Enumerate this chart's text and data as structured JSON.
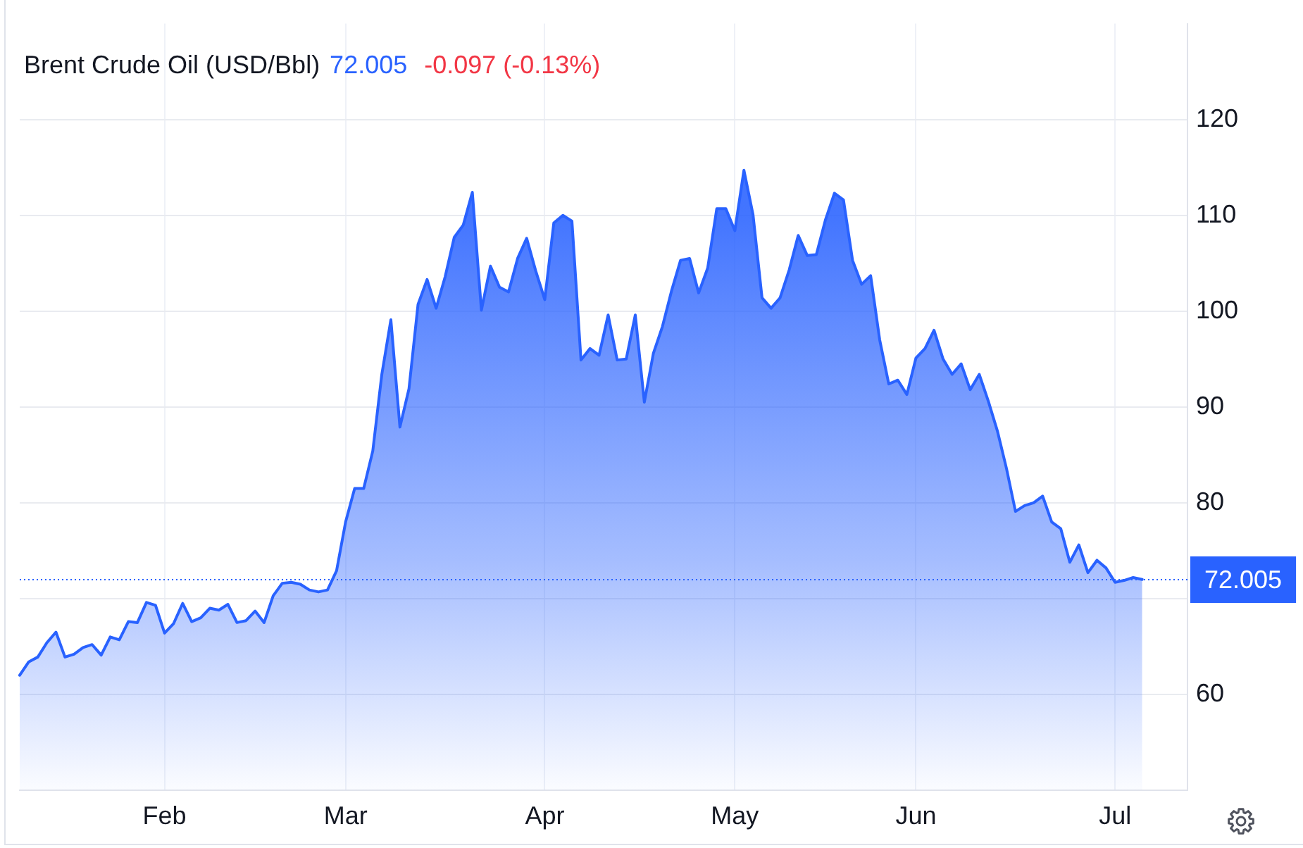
{
  "chart_data": {
    "type": "area",
    "title": "Brent Crude Oil (USD/Bbl)",
    "annotations": [
      "72.005",
      "-0.097 (-0.13%)"
    ],
    "categories": [
      null,
      null,
      null,
      null,
      null,
      null,
      null,
      null,
      null,
      null,
      null,
      null,
      null,
      null,
      null,
      null,
      "Feb",
      null,
      null,
      null,
      null,
      null,
      null,
      null,
      null,
      null,
      null,
      null,
      null,
      null,
      null,
      null,
      null,
      null,
      null,
      null,
      "Mar",
      null,
      null,
      null,
      null,
      null,
      null,
      null,
      null,
      null,
      null,
      null,
      null,
      null,
      null,
      null,
      null,
      null,
      null,
      null,
      null,
      null,
      "Apr",
      null,
      null,
      null,
      null,
      null,
      null,
      null,
      null,
      null,
      null,
      null,
      null,
      null,
      null,
      null,
      null,
      null,
      null,
      null,
      null,
      "May",
      null,
      null,
      null,
      null,
      null,
      null,
      null,
      null,
      null,
      null,
      null,
      null,
      null,
      null,
      null,
      null,
      null,
      null,
      null,
      "Jun",
      null,
      null,
      null,
      null,
      null,
      null,
      null,
      null,
      null,
      null,
      null,
      null,
      null,
      null,
      null,
      null,
      null,
      null,
      null,
      null,
      null,
      "Jul",
      null,
      null,
      null,
      null,
      null,
      null,
      null,
      null
    ],
    "values": [
      62.0,
      63.4,
      63.9,
      65.4,
      66.5,
      63.9,
      64.2,
      64.9,
      65.2,
      64.1,
      66.0,
      65.7,
      67.6,
      67.5,
      69.6,
      69.3,
      66.4,
      67.4,
      69.5,
      67.6,
      68.0,
      69.0,
      68.8,
      69.4,
      67.5,
      67.7,
      68.7,
      67.5,
      70.3,
      71.6,
      71.7,
      71.5,
      70.9,
      70.7,
      70.9,
      72.9,
      78.0,
      81.5,
      81.5,
      85.4,
      93.4,
      99.1,
      87.9,
      91.9,
      100.7,
      103.3,
      100.3,
      103.6,
      107.7,
      109.0,
      112.4,
      100.1,
      104.7,
      102.5,
      102.0,
      105.5,
      107.6,
      104.2,
      101.2,
      109.2,
      110.0,
      109.4,
      94.9,
      96.1,
      95.4,
      99.6,
      94.9,
      95.0,
      99.6,
      90.5,
      95.6,
      98.4,
      102.1,
      105.3,
      105.5,
      101.9,
      104.5,
      110.7,
      110.7,
      108.4,
      114.7,
      110.1,
      101.4,
      100.3,
      101.4,
      104.3,
      107.9,
      105.8,
      105.9,
      109.5,
      112.3,
      111.6,
      105.3,
      102.8,
      103.7,
      97.0,
      92.4,
      92.8,
      91.3,
      95.1,
      96.1,
      98.0,
      95.0,
      93.4,
      94.5,
      91.8,
      93.4,
      90.6,
      87.5,
      83.6,
      79.1,
      79.7,
      80.0,
      80.7,
      78.0,
      77.3,
      73.8,
      75.6,
      72.7,
      74.0,
      73.2,
      71.7,
      71.9,
      72.2,
      72.0,
      null,
      null,
      null,
      null,
      null
    ],
    "color": "#2962ff",
    "ylim": [
      50,
      130
    ],
    "yticks": [
      60,
      {
        "value": 70,
        "label": null
      },
      80,
      90,
      100,
      110,
      120
    ],
    "grid": true,
    "ref_lines": [
      {
        "axis": "y",
        "value": 72.005,
        "label": "72.005",
        "color": "#2962ff",
        "line_style": "dotted"
      }
    ]
  }
}
